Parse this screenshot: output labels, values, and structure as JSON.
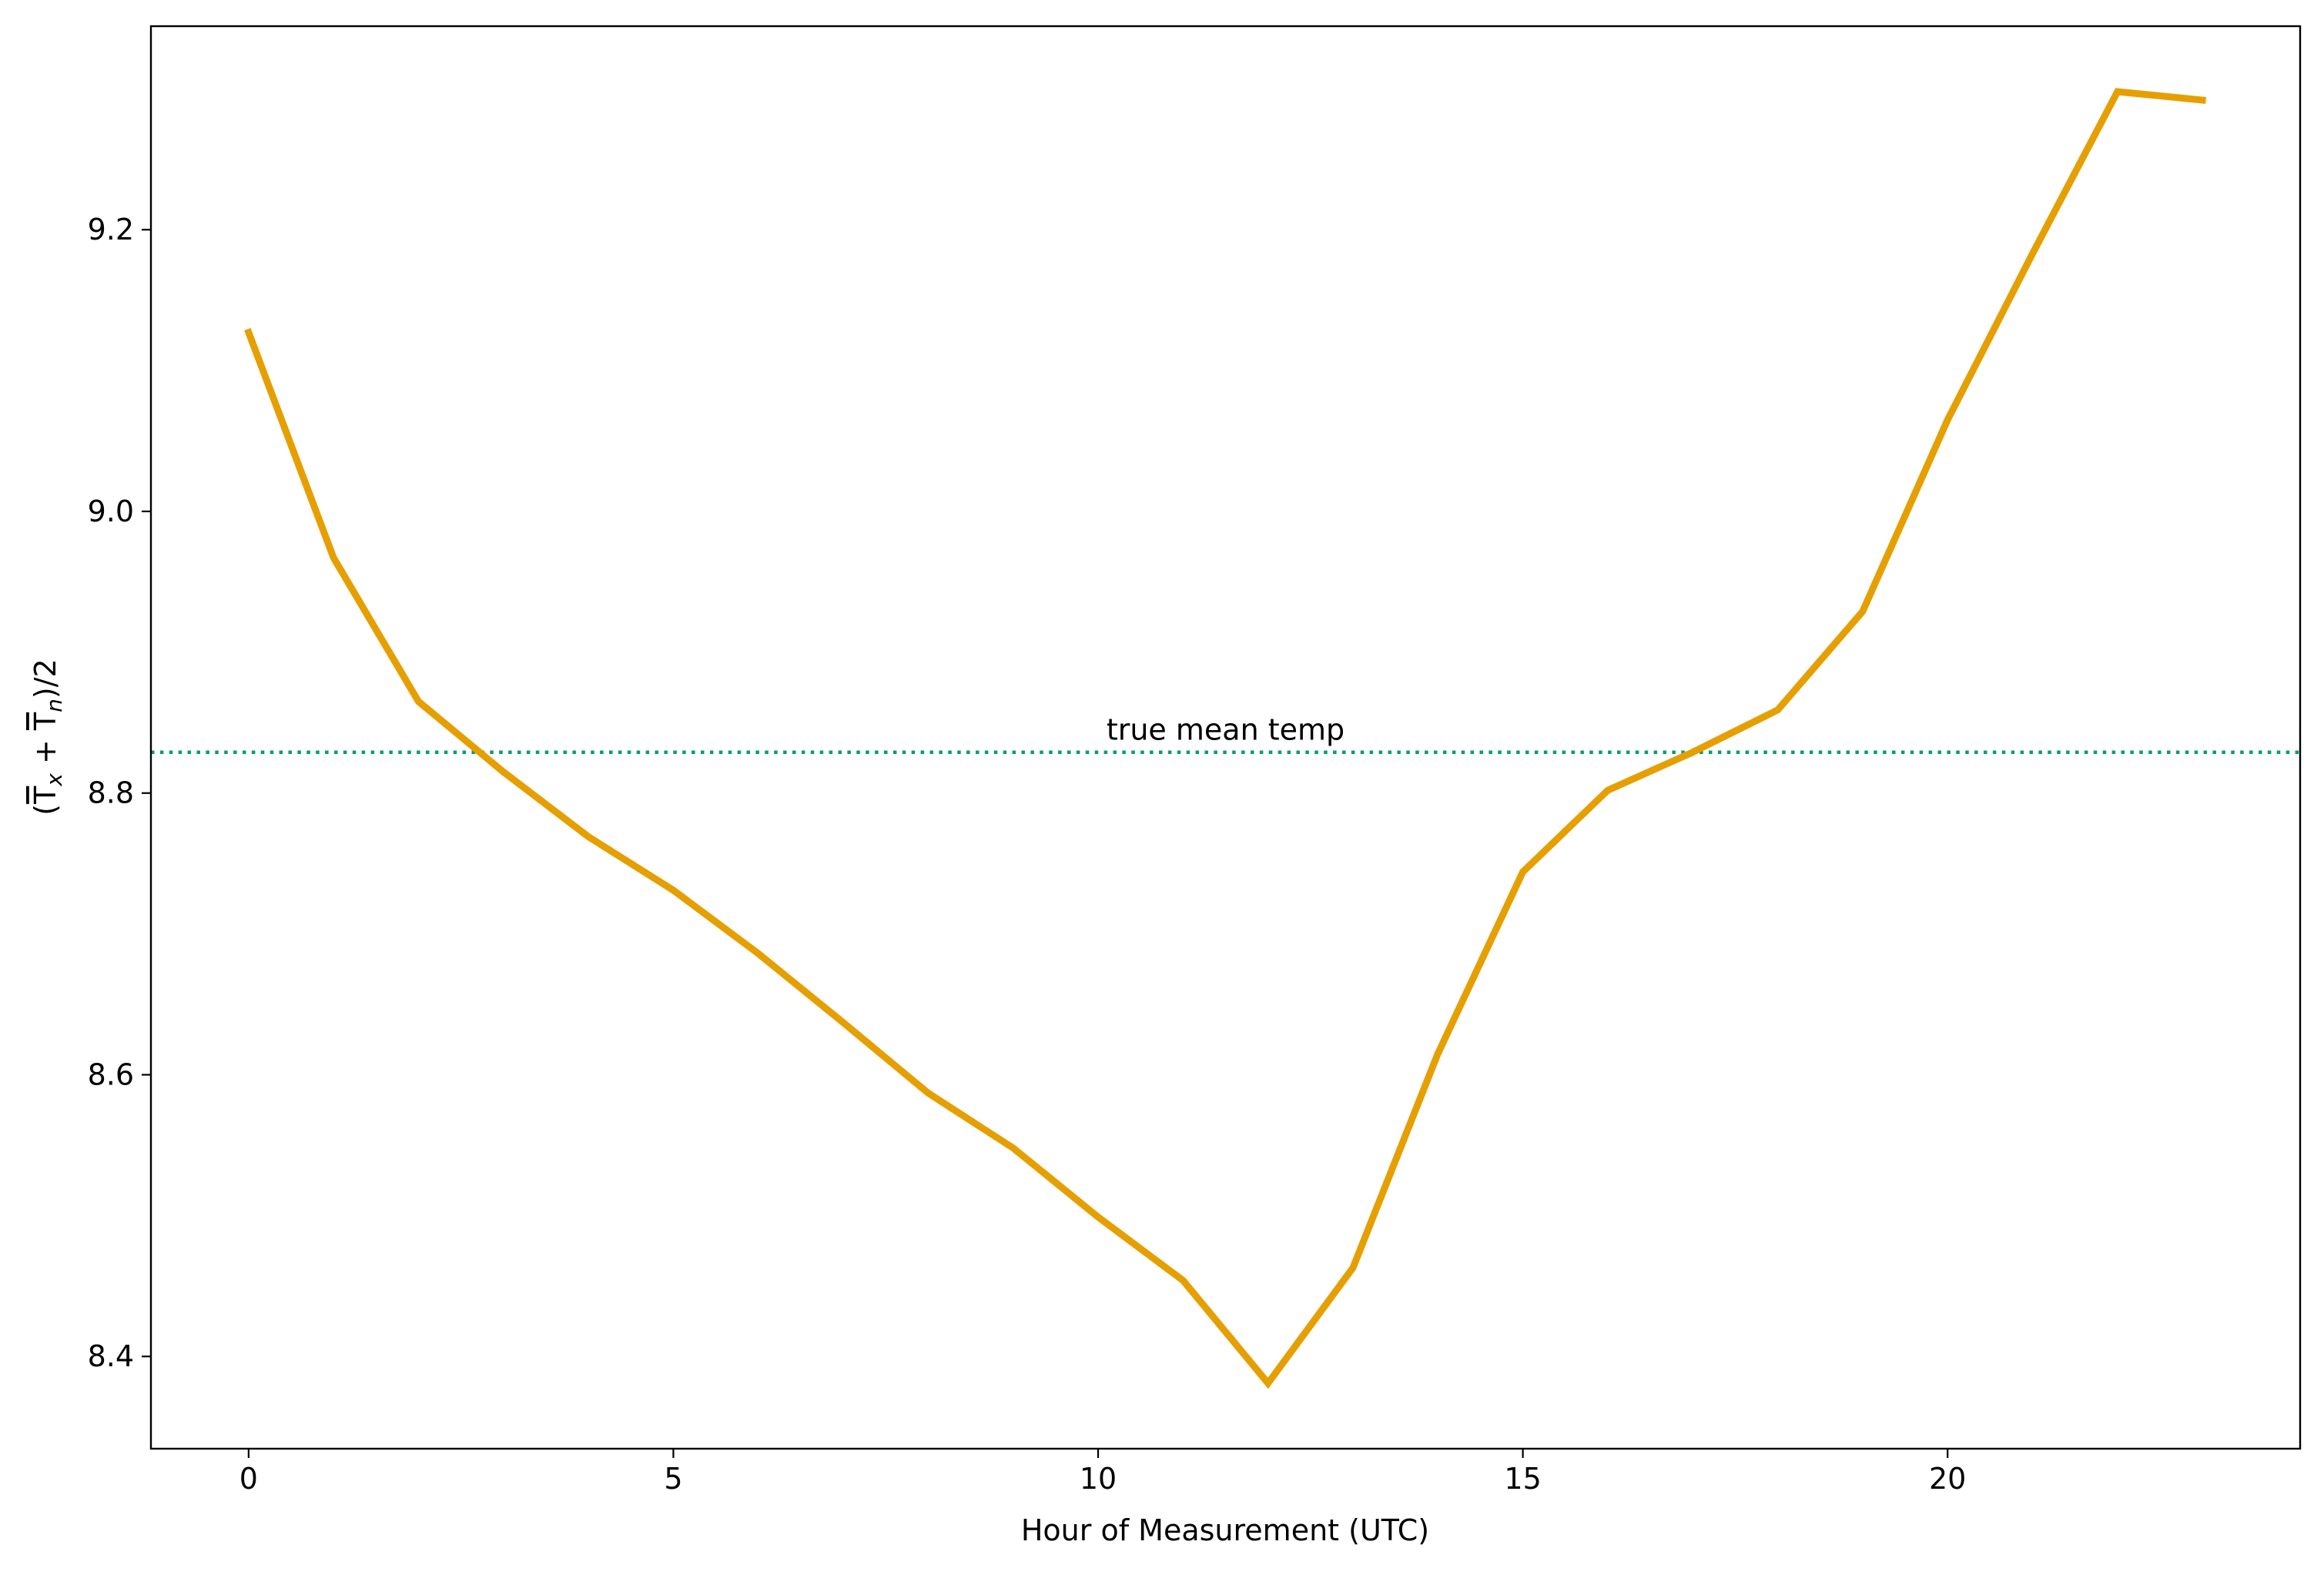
{
  "chart_data": {
    "type": "line",
    "title": "",
    "xlabel": "Hour of Measurement (UTC)",
    "ylabel": "(T̄x + T̄n)/2",
    "ylabel_parts": {
      "open": "(",
      "t1": "T",
      "sub1": "x",
      "plus": " + ",
      "t2": "T",
      "sub2": "n",
      "close": ")/2"
    },
    "xlim": [
      -1.15,
      24.15
    ],
    "ylim": [
      8.3345,
      9.3445
    ],
    "xticks": [
      0,
      5,
      10,
      15,
      20
    ],
    "xtick_labels": [
      "0",
      "5",
      "10",
      "15",
      "20"
    ],
    "yticks": [
      8.4,
      8.6,
      8.8,
      9.0,
      9.2
    ],
    "ytick_labels": [
      "8.4",
      "8.6",
      "8.8",
      "9.0",
      "9.2"
    ],
    "grid": false,
    "series": [
      {
        "color": "#E69F00",
        "x": [
          0,
          1,
          2,
          3,
          4,
          5,
          6,
          7,
          8,
          9,
          10,
          11,
          12,
          13,
          14,
          15,
          16,
          17,
          18,
          19,
          20,
          21,
          22,
          23
        ],
        "values": [
          9.127,
          8.967,
          8.865,
          8.815,
          8.769,
          8.731,
          8.686,
          8.637,
          8.587,
          8.548,
          8.499,
          8.454,
          8.381,
          8.463,
          8.615,
          8.744,
          8.802,
          8.829,
          8.859,
          8.929,
          9.065,
          9.183,
          9.298,
          9.292
        ]
      }
    ],
    "reference_line": {
      "y": 8.829,
      "color": "#009E73",
      "style": "dotted",
      "label": "true mean temp",
      "label_x": 11.5
    }
  }
}
